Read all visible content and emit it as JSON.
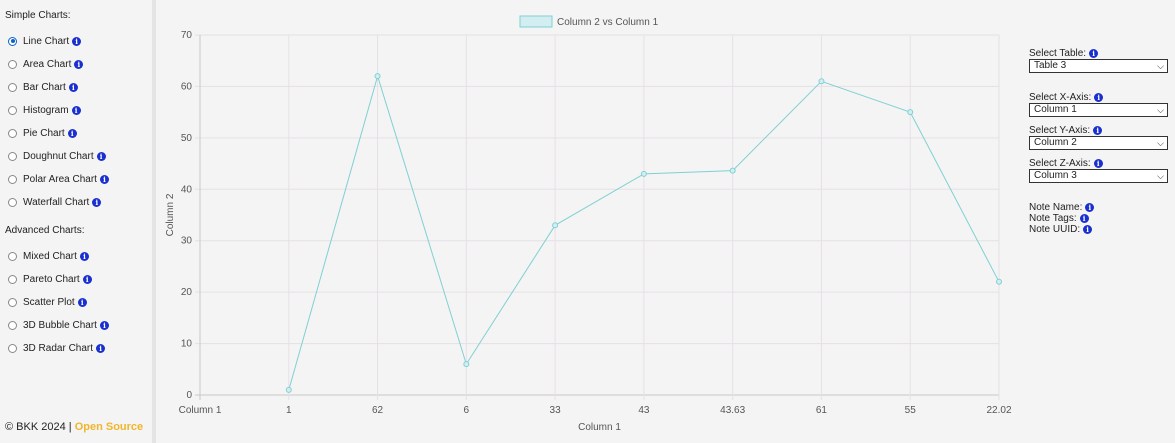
{
  "sidebar": {
    "simple_title": "Simple Charts:",
    "simple_items": [
      {
        "label": "Line Chart",
        "checked": true
      },
      {
        "label": "Area Chart",
        "checked": false
      },
      {
        "label": "Bar Chart",
        "checked": false
      },
      {
        "label": "Histogram",
        "checked": false
      },
      {
        "label": "Pie Chart",
        "checked": false
      },
      {
        "label": "Doughnut Chart",
        "checked": false
      },
      {
        "label": "Polar Area Chart",
        "checked": false
      },
      {
        "label": "Waterfall Chart",
        "checked": false
      }
    ],
    "advanced_title": "Advanced Charts:",
    "advanced_items": [
      {
        "label": "Mixed Chart",
        "checked": false
      },
      {
        "label": "Pareto Chart",
        "checked": false
      },
      {
        "label": "Scatter Plot",
        "checked": false
      },
      {
        "label": "3D Bubble Chart",
        "checked": false
      },
      {
        "label": "3D Radar Chart",
        "checked": false
      }
    ],
    "info_glyph": "i"
  },
  "footer": {
    "copyright": "© BKK 2024 |",
    "open_source": "Open Source"
  },
  "right_panel": {
    "select_table_label": "Select Table:",
    "select_table_value": "Table 3",
    "x_axis_label": "Select X-Axis:",
    "x_axis_value": "Column 1",
    "y_axis_label": "Select Y-Axis:",
    "y_axis_value": "Column 2",
    "z_axis_label": "Select Z-Axis:",
    "z_axis_value": "Column 3",
    "note_name_label": "Note Name:",
    "note_tags_label": "Note Tags:",
    "note_uuid_label": "Note UUID:"
  },
  "chart_data": {
    "type": "line",
    "categories": [
      "Column 1",
      "1",
      "62",
      "6",
      "33",
      "43",
      "43.63",
      "61",
      "55",
      "22.02"
    ],
    "series": [
      {
        "name": "Column 2 vs Column 1",
        "values": [
          null,
          1,
          62,
          6,
          33,
          43,
          43.63,
          61,
          55,
          22.02
        ]
      }
    ],
    "title": "",
    "xlabel": "Column 1",
    "ylabel": "Column 2",
    "ylim": [
      0,
      70
    ],
    "yticks": [
      0,
      10,
      20,
      30,
      40,
      50,
      60,
      70
    ],
    "grid": true,
    "legend": "top-center",
    "line_color": "#7fd0d3",
    "fill_color": "#d2eef0",
    "grid_color": "#e6e0e6"
  }
}
